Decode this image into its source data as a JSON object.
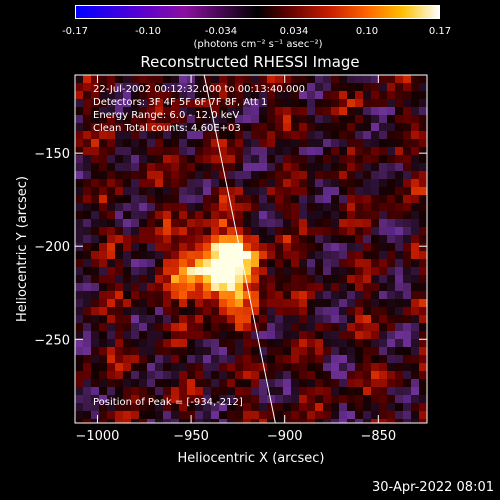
{
  "colorbar": {
    "ticks": [
      "-0.17",
      "-0.10",
      "-0.034",
      "0.034",
      "0.10",
      "0.17"
    ],
    "unit": "(photons cm⁻² s⁻¹ asec⁻²)",
    "range": [
      -0.17,
      0.17
    ]
  },
  "chart_data": {
    "type": "heatmap",
    "title": "Reconstructed RHESSI Image",
    "xlabel": "Heliocentric X (arcsec)",
    "ylabel": "Heliocentric Y (arcsec)",
    "xlim": [
      -1012,
      -824
    ],
    "ylim": [
      -295,
      -108
    ],
    "xticks": [
      -1000,
      -950,
      -900,
      -850
    ],
    "yticks": [
      -150,
      -200,
      -250
    ],
    "xtick_labels": [
      "−1000",
      "−950",
      "−900",
      "−850"
    ],
    "ytick_labels": [
      "−150",
      "−200",
      "−250"
    ],
    "peak": [
      -934,
      -212
    ],
    "limb_line": [
      [
        -943,
        -108
      ],
      [
        -905,
        -295
      ]
    ],
    "annotations": {
      "time": "22-Jul-2002 00:12:32.000 to 00:13:40.000",
      "detectors": "Detectors: 3F 4F 5F 6F 7F 8F, Att 1",
      "energy": "Energy Range: 6.0 - 12.0 keV",
      "method": "Clean    Total counts: 4.60E+03",
      "peak_text": "Position of Peak = [-934,-212]"
    }
  },
  "footer": {
    "date": "30-Apr-2022 08:01"
  }
}
